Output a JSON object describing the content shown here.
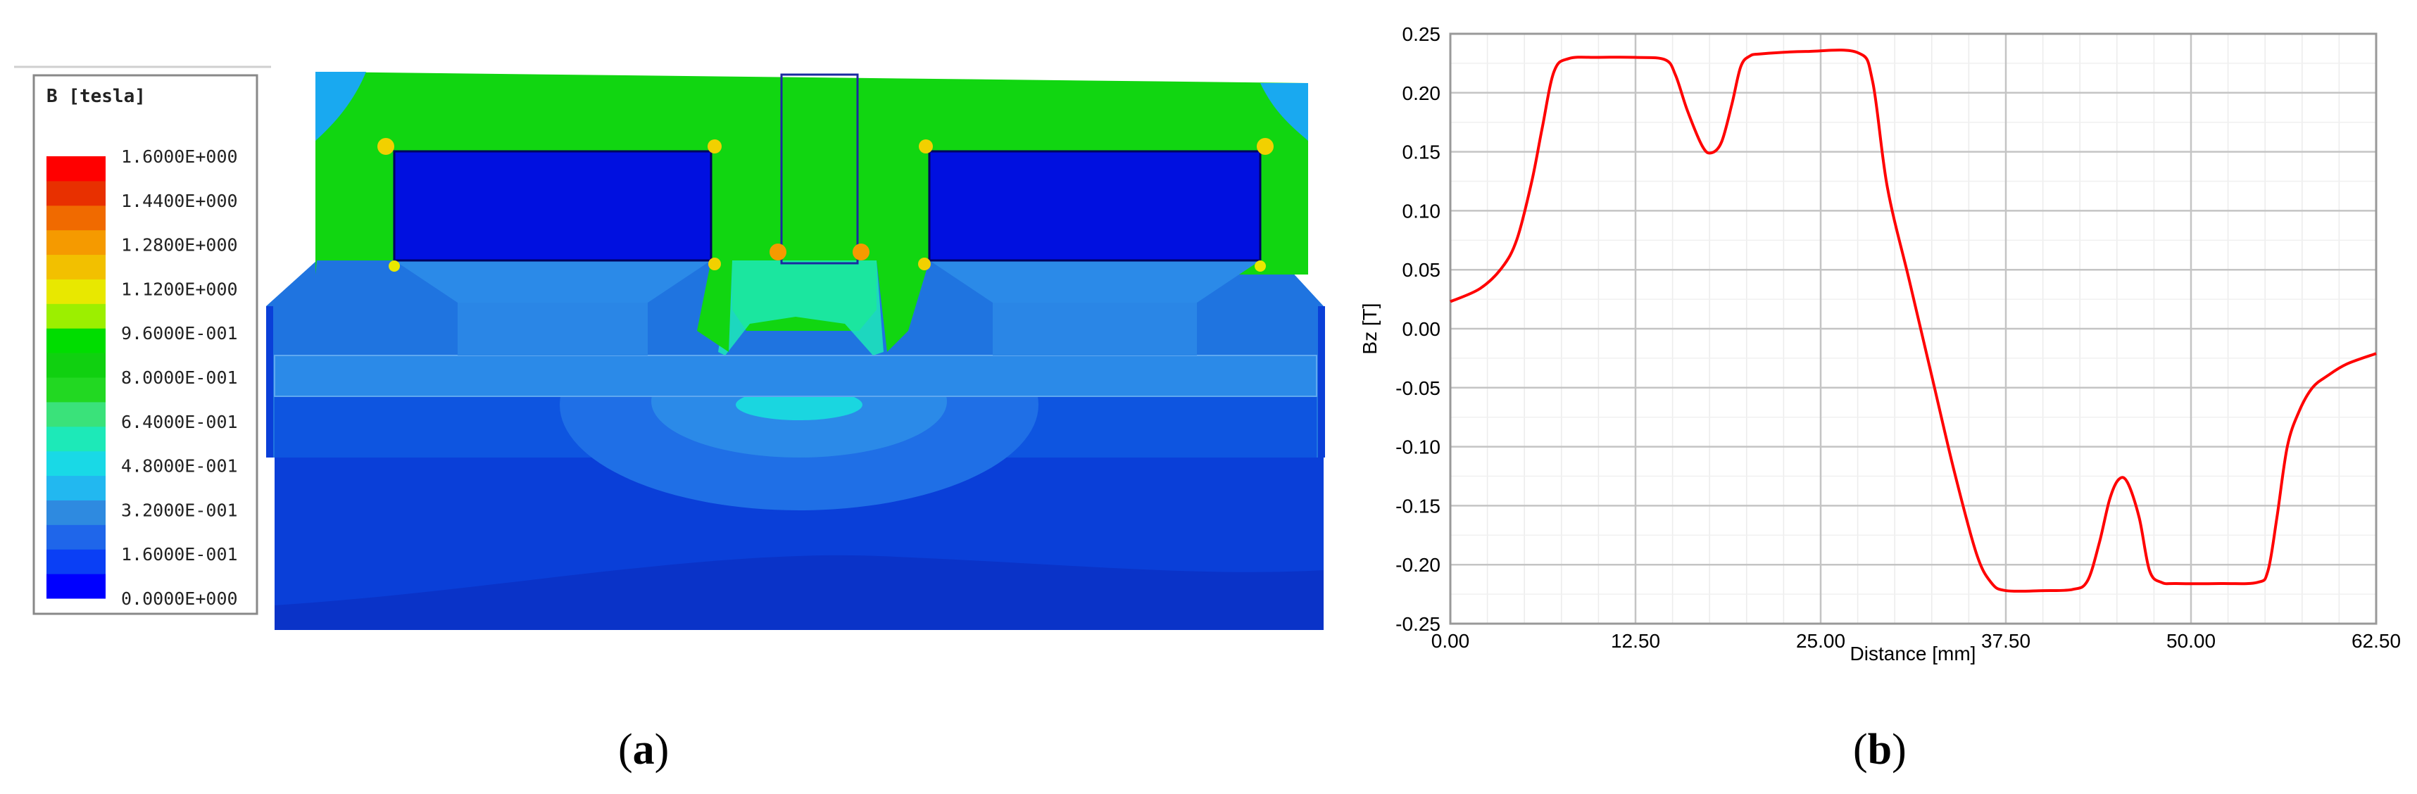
{
  "captions": {
    "a": "a",
    "b": "b"
  },
  "colormap_legend": {
    "title": "B [tesla]",
    "ticks": [
      "1.6000E+000",
      "1.4400E+000",
      "1.2800E+000",
      "1.1200E+000",
      "9.6000E-001",
      "8.0000E-001",
      "6.4000E-001",
      "4.8000E-001",
      "3.2000E-001",
      "1.6000E-001",
      "0.0000E+000"
    ],
    "colors": [
      "#0000ff",
      "#0a3ff5",
      "#1f66ea",
      "#2e8ae0",
      "#22b8f0",
      "#19d9e6",
      "#1de9b8",
      "#3ae27a",
      "#22d822",
      "#10d010",
      "#00dd00",
      "#9cef00",
      "#e8e800",
      "#f2c000",
      "#f59a00",
      "#f06a00",
      "#e83000",
      "#ff0000"
    ]
  },
  "field_plot": {
    "colors": {
      "air_dark": "#0a3fd8",
      "air_mid": "#0e55e0",
      "light_blue": "#2b8ae8",
      "cyan": "#1ad6e0",
      "green": "#11d611",
      "magnet": "#0010e0",
      "hotspot": "#f2d000"
    }
  },
  "chart_data": {
    "type": "line",
    "title": "",
    "xlabel": "Distance [mm]",
    "ylabel": "Bz [T]",
    "xlim": [
      0,
      62.5
    ],
    "ylim": [
      -0.25,
      0.25
    ],
    "xticks": [
      "0.00",
      "12.50",
      "25.00",
      "37.50",
      "50.00",
      "62.50"
    ],
    "yticks": [
      "0.25",
      "0.20",
      "0.15",
      "0.10",
      "0.05",
      "0.00",
      "-0.05",
      "-0.10",
      "-0.15",
      "-0.20",
      "-0.25"
    ],
    "grid": true,
    "series": [
      {
        "color": "#ff0000",
        "x": [
          0,
          2,
          3.5,
          4.5,
          5.5,
          6.2,
          7,
          8,
          10,
          12.5,
          14.5,
          15.2,
          16,
          17,
          17.6,
          18.3,
          19,
          19.6,
          20.2,
          21,
          24,
          27.5,
          28.5,
          29.5,
          31,
          32.5,
          34,
          35.5,
          36.5,
          37.5,
          40,
          42,
          43,
          43.8,
          44.5,
          45.1,
          45.7,
          46.5,
          47.2,
          48,
          49,
          52,
          54.5,
          55.2,
          55.8,
          56.5,
          57.3,
          58.2,
          59.2,
          60.5,
          62.5
        ],
        "y": [
          0.023,
          0.034,
          0.052,
          0.076,
          0.125,
          0.17,
          0.218,
          0.229,
          0.23,
          0.23,
          0.228,
          0.215,
          0.185,
          0.155,
          0.149,
          0.158,
          0.19,
          0.222,
          0.231,
          0.233,
          0.235,
          0.234,
          0.21,
          0.12,
          0.04,
          -0.04,
          -0.12,
          -0.19,
          -0.215,
          -0.222,
          -0.222,
          -0.221,
          -0.214,
          -0.182,
          -0.145,
          -0.128,
          -0.13,
          -0.16,
          -0.205,
          -0.215,
          -0.216,
          -0.216,
          -0.215,
          -0.205,
          -0.16,
          -0.1,
          -0.07,
          -0.05,
          -0.04,
          -0.03,
          -0.021
        ]
      }
    ]
  }
}
